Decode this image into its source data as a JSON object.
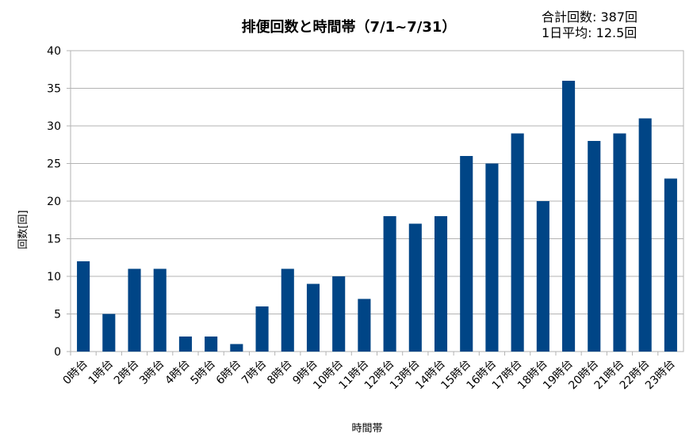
{
  "chart_data": {
    "type": "bar",
    "title": "排便回数と時間帯（7/1~7/31）",
    "xlabel": "時間帯",
    "ylabel": "回数[回]",
    "ylim": [
      0,
      40
    ],
    "yticks": [
      0,
      5,
      10,
      15,
      20,
      25,
      30,
      35,
      40
    ],
    "grid": true,
    "legend": "none",
    "bar_color": "#004586",
    "categories": [
      "0時台",
      "1時台",
      "2時台",
      "3時台",
      "4時台",
      "5時台",
      "6時台",
      "7時台",
      "8時台",
      "9時台",
      "10時台",
      "11時台",
      "12時台",
      "13時台",
      "14時台",
      "15時台",
      "16時台",
      "17時台",
      "18時台",
      "19時台",
      "20時台",
      "21時台",
      "22時台",
      "23時台"
    ],
    "values": [
      12,
      5,
      11,
      11,
      2,
      2,
      1,
      6,
      11,
      9,
      10,
      7,
      18,
      17,
      18,
      26,
      25,
      29,
      20,
      36,
      28,
      29,
      31,
      23
    ],
    "annotations": [
      "合計回数: 387回",
      "1日平均: 12.5回"
    ]
  }
}
